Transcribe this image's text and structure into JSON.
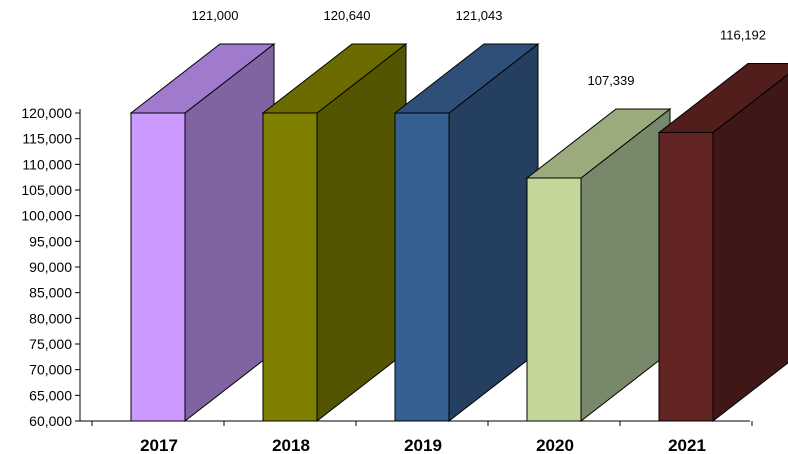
{
  "chart_data": {
    "type": "bar",
    "style": "3d",
    "categories": [
      "2017",
      "2018",
      "2019",
      "2020",
      "2021"
    ],
    "values": [
      121000,
      120640,
      121043,
      107339,
      116192
    ],
    "value_labels": [
      "121,000",
      "120,640",
      "121,043",
      "107,339",
      "116,192"
    ],
    "yticks": [
      "60,000",
      "65,000",
      "70,000",
      "75,000",
      "80,000",
      "85,000",
      "90,000",
      "95,000",
      "100,000",
      "105,000",
      "110,000",
      "115,000",
      "120,000"
    ],
    "ylim": [
      60000,
      120000
    ],
    "grid": false,
    "legend": "none",
    "colors": {
      "2017": {
        "front": "#cc99ff",
        "side": "#8064a2",
        "top": "#a07acd"
      },
      "2018": {
        "front": "#808000",
        "side": "#545500",
        "top": "#6b6b00"
      },
      "2019": {
        "front": "#376092",
        "side": "#243f60",
        "top": "#2e5078"
      },
      "2020": {
        "front": "#c4d79b",
        "side": "#77896a",
        "top": "#9bab7c"
      },
      "2021": {
        "front": "#632523",
        "side": "#3f1716",
        "top": "#521e1c"
      }
    }
  }
}
